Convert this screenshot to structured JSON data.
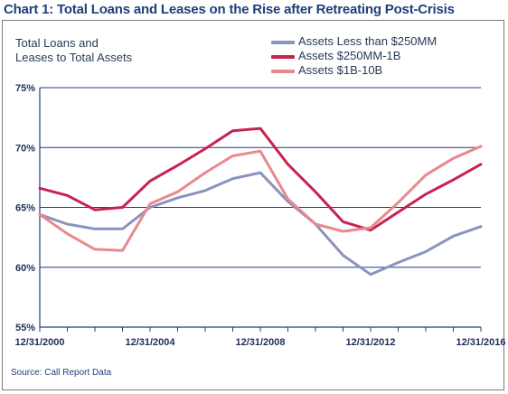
{
  "title_prefix": "Chart 1:",
  "title_rest": "Total Loans and Leases on the Rise after Retreating Post-Crisis",
  "source": "Source: Call Report Data",
  "chart_data": {
    "type": "line",
    "ylabel_line1": "Total Loans and",
    "ylabel_line2": "Leases to Total Assets",
    "ylim": [
      55,
      75
    ],
    "yticks": [
      "55%",
      "60%",
      "65%",
      "70%",
      "75%"
    ],
    "ytick_values": [
      55,
      60,
      65,
      70,
      75
    ],
    "xlim": [
      2000,
      2016
    ],
    "xticks": [
      "12/31/2000",
      "12/31/2004",
      "12/31/2008",
      "12/31/2012",
      "12/31/2016"
    ],
    "xtick_values": [
      2000,
      2004,
      2008,
      2012,
      2016
    ],
    "grid": "horizontal",
    "legend_position": "top-right",
    "x": [
      2000,
      2001,
      2002,
      2003,
      2004,
      2005,
      2006,
      2007,
      2008,
      2009,
      2010,
      2011,
      2012,
      2013,
      2014,
      2015,
      2016
    ],
    "series": [
      {
        "name": "Assets Less than $250MM",
        "color": "#8a93bd",
        "values": [
          64.4,
          63.6,
          63.2,
          63.2,
          65.0,
          65.8,
          66.4,
          67.4,
          67.9,
          65.5,
          63.6,
          61.0,
          59.4,
          60.4,
          61.3,
          62.6,
          63.4
        ]
      },
      {
        "name": "Assets $250MM-1B",
        "color": "#c8234f",
        "values": [
          66.6,
          66.0,
          64.8,
          65.0,
          67.2,
          68.5,
          69.9,
          71.4,
          71.6,
          68.6,
          66.3,
          63.8,
          63.1,
          64.6,
          66.1,
          67.3,
          68.6
        ]
      },
      {
        "name": "Assets $1B-10B",
        "color": "#e78a8e",
        "values": [
          64.4,
          62.8,
          61.5,
          61.4,
          65.3,
          66.3,
          67.9,
          69.3,
          69.7,
          65.7,
          63.6,
          63.0,
          63.3,
          65.4,
          67.7,
          69.1,
          70.1
        ]
      }
    ]
  }
}
